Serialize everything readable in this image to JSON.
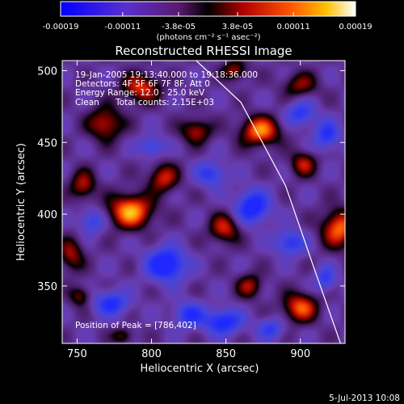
{
  "chart_data": {
    "type": "heatmap",
    "title": "Reconstructed RHESSI Image",
    "xlabel": "Heliocentric X (arcsec)",
    "ylabel": "Heliocentric Y (arcsec)",
    "xlim": [
      740,
      930
    ],
    "ylim": [
      310,
      507
    ],
    "x_ticks": [
      750,
      800,
      850,
      900
    ],
    "y_ticks": [
      350,
      400,
      450,
      500
    ],
    "grid": false,
    "colormap": "blue-purple-black-red-orange-yellow-white",
    "colors": {
      "blue": "#3a3ad8",
      "purple": "#6a2f9a",
      "black": "#000000",
      "red": "#c01010",
      "orange": "#ff6a00",
      "yellow": "#ffd21a",
      "white": "#ffffff"
    },
    "colorbar": {
      "range": [
        -0.00019,
        0.00019
      ],
      "tick_labels": [
        "-0.00019",
        "-0.00011",
        "-3.8e-05",
        "3.8e-05",
        "0.00011",
        "0.00019"
      ],
      "units_label": "(photons cm⁻² s⁻¹ asec⁻²)"
    },
    "annotations": {
      "time": "19-Jan-2005 19:13:40.000 to 19:18:36.000",
      "detectors": "Detectors: 4F 5F 6F 7F 8F, Att 0",
      "energy": "Energy Range: 12.0 - 25.0 keV",
      "method": "Clean",
      "counts": "Total counts: 2.15E+03",
      "peak": "Position of Peak = [786,402]"
    },
    "peak_position": [
      786,
      402
    ],
    "limb_curve": [
      [
        830,
        507
      ],
      [
        860,
        478
      ],
      [
        890,
        420
      ],
      [
        910,
        360
      ],
      [
        927,
        310
      ]
    ],
    "bright_sources": [
      {
        "x": 786,
        "y": 402,
        "value": 0.00019,
        "sx": 10,
        "sy": 8
      },
      {
        "x": 873,
        "y": 458,
        "value": 0.00017,
        "sx": 9,
        "sy": 7
      },
      {
        "x": 926,
        "y": 390,
        "value": 0.00016,
        "sx": 8,
        "sy": 9
      },
      {
        "x": 900,
        "y": 335,
        "value": 0.00015,
        "sx": 8,
        "sy": 7
      },
      {
        "x": 849,
        "y": 390,
        "value": 0.00012,
        "sx": 7,
        "sy": 7
      },
      {
        "x": 808,
        "y": 425,
        "value": 0.00012,
        "sx": 7,
        "sy": 7
      },
      {
        "x": 769,
        "y": 463,
        "value": 0.00012,
        "sx": 8,
        "sy": 8
      },
      {
        "x": 793,
        "y": 488,
        "value": 0.00013,
        "sx": 9,
        "sy": 7
      },
      {
        "x": 830,
        "y": 458,
        "value": 0.00011,
        "sx": 7,
        "sy": 6
      },
      {
        "x": 754,
        "y": 420,
        "value": 0.00011,
        "sx": 6,
        "sy": 7
      },
      {
        "x": 902,
        "y": 435,
        "value": 0.00011,
        "sx": 6,
        "sy": 6
      },
      {
        "x": 746,
        "y": 372,
        "value": 0.0001,
        "sx": 6,
        "sy": 8
      },
      {
        "x": 866,
        "y": 350,
        "value": 0.0001,
        "sx": 6,
        "sy": 6
      },
      {
        "x": 752,
        "y": 343,
        "value": 9e-05,
        "sx": 5,
        "sy": 5
      },
      {
        "x": 900,
        "y": 490,
        "value": 9e-05,
        "sx": 8,
        "sy": 6
      },
      {
        "x": 856,
        "y": 500,
        "value": 0.0001,
        "sx": 6,
        "sy": 5
      },
      {
        "x": 781,
        "y": 315,
        "value": 8e-05,
        "sx": 5,
        "sy": 4
      }
    ],
    "dark_sources": [
      {
        "x": 810,
        "y": 365,
        "value": -0.00018,
        "sx": 9,
        "sy": 8
      },
      {
        "x": 868,
        "y": 405,
        "value": -0.00016,
        "sx": 8,
        "sy": 8
      },
      {
        "x": 893,
        "y": 380,
        "value": -0.00012,
        "sx": 7,
        "sy": 6
      },
      {
        "x": 848,
        "y": 325,
        "value": -0.00015,
        "sx": 9,
        "sy": 6
      },
      {
        "x": 773,
        "y": 338,
        "value": -0.00013,
        "sx": 8,
        "sy": 6
      },
      {
        "x": 918,
        "y": 455,
        "value": -0.00012,
        "sx": 6,
        "sy": 7
      },
      {
        "x": 840,
        "y": 428,
        "value": -0.00011,
        "sx": 7,
        "sy": 6
      },
      {
        "x": 900,
        "y": 470,
        "value": -0.00011,
        "sx": 7,
        "sy": 6
      },
      {
        "x": 760,
        "y": 395,
        "value": -0.0001,
        "sx": 6,
        "sy": 6
      },
      {
        "x": 825,
        "y": 330,
        "value": -0.00012,
        "sx": 7,
        "sy": 6
      },
      {
        "x": 917,
        "y": 355,
        "value": -0.0001,
        "sx": 5,
        "sy": 6
      },
      {
        "x": 880,
        "y": 320,
        "value": -0.0001,
        "sx": 6,
        "sy": 5
      },
      {
        "x": 800,
        "y": 447,
        "value": -0.0001,
        "sx": 6,
        "sy": 5
      }
    ]
  },
  "footer": {
    "timestamp": "5-Jul-2013 10:08"
  }
}
